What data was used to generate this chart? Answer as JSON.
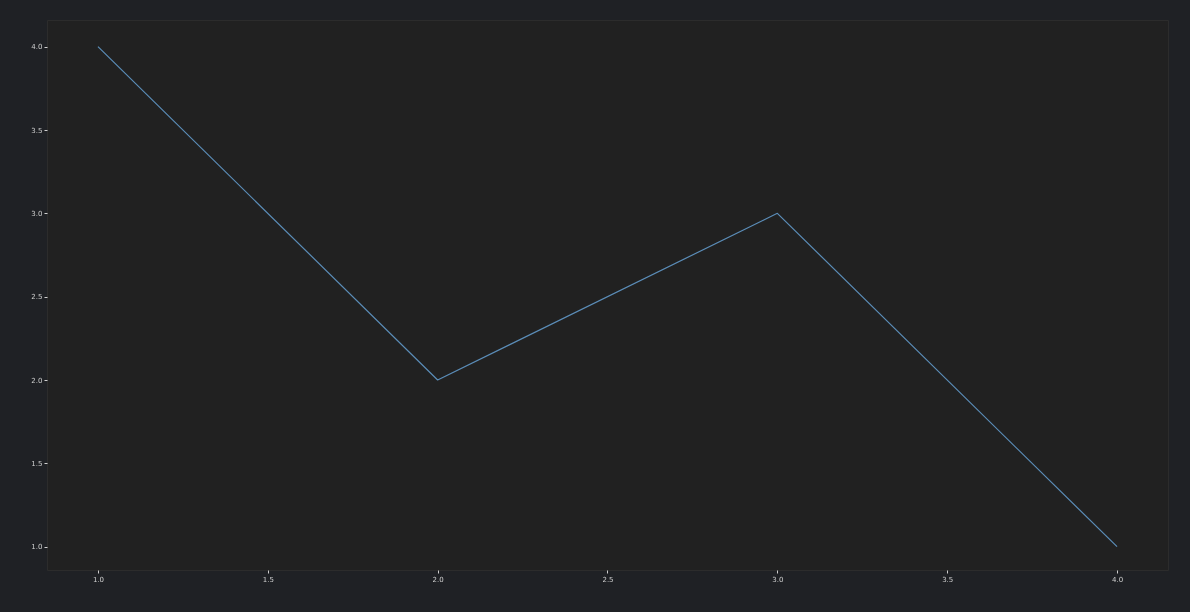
{
  "chart_data": {
    "type": "line",
    "x": [
      1,
      2,
      3,
      4
    ],
    "series": [
      {
        "color": "#5b8db8",
        "values": [
          4,
          2,
          3,
          1
        ]
      }
    ],
    "xlim": [
      0.85,
      4.15
    ],
    "ylim": [
      0.86,
      4.16
    ],
    "xticks": [
      {
        "value": 1,
        "label": "1.0"
      },
      {
        "value": 1.5,
        "label": "1.5"
      },
      {
        "value": 2,
        "label": "2.0"
      },
      {
        "value": 2.5,
        "label": "2.5"
      },
      {
        "value": 3,
        "label": "3.0"
      },
      {
        "value": 3.5,
        "label": "3.5"
      },
      {
        "value": 4,
        "label": "4.0"
      }
    ],
    "yticks": [
      {
        "value": 1,
        "label": "1.0"
      },
      {
        "value": 1.5,
        "label": "1.5"
      },
      {
        "value": 2,
        "label": "2.0"
      },
      {
        "value": 2.5,
        "label": "2.5"
      },
      {
        "value": 3,
        "label": "3.0"
      },
      {
        "value": 3.5,
        "label": "3.5"
      },
      {
        "value": 4,
        "label": "4.0"
      }
    ],
    "grid": false,
    "marker": "none",
    "line_style": "solid"
  }
}
